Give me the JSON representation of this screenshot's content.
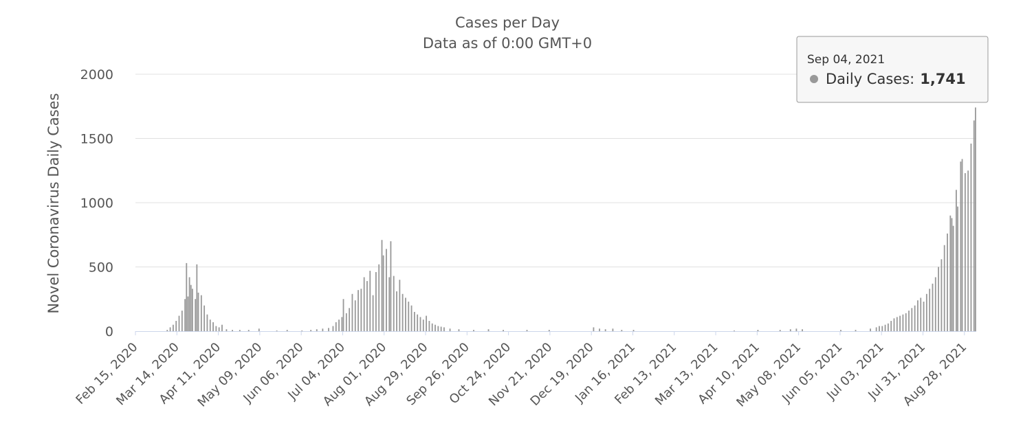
{
  "chart_data": {
    "type": "bar",
    "title": "Cases per Day",
    "subtitle": "Data as of 0:00 GMT+0",
    "xlabel": "",
    "ylabel": "Novel Coronavirus Daily Cases",
    "ylim": [
      0,
      2000
    ],
    "y_ticks": [
      0,
      500,
      1000,
      1500,
      2000
    ],
    "grid": true,
    "bar_color": "#999999",
    "x_start": "Feb 15, 2020",
    "x_end": "Sep 04, 2021",
    "x_ticks": [
      "Feb 15, 2020",
      "Mar 14, 2020",
      "Apr 11, 2020",
      "May 09, 2020",
      "Jun 06, 2020",
      "Jul 04, 2020",
      "Aug 01, 2020",
      "Aug 29, 2020",
      "Sep 26, 2020",
      "Oct 24, 2020",
      "Nov 21, 2020",
      "Dec 19, 2020",
      "Jan 16, 2021",
      "Feb 13, 2021",
      "Mar 13, 2021",
      "Apr 10, 2021",
      "May 08, 2021",
      "Jun 05, 2021",
      "Jul 03, 2021",
      "Jul 31, 2021",
      "Aug 28, 2021"
    ],
    "series": [
      {
        "name": "Daily Cases",
        "points": [
          [
            "Mar 07, 2020",
            10
          ],
          [
            "Mar 09, 2020",
            30
          ],
          [
            "Mar 11, 2020",
            50
          ],
          [
            "Mar 13, 2020",
            80
          ],
          [
            "Mar 15, 2020",
            120
          ],
          [
            "Mar 17, 2020",
            160
          ],
          [
            "Mar 19, 2020",
            250
          ],
          [
            "Mar 20, 2020",
            530
          ],
          [
            "Mar 21, 2020",
            270
          ],
          [
            "Mar 22, 2020",
            420
          ],
          [
            "Mar 23, 2020",
            360
          ],
          [
            "Mar 24, 2020",
            330
          ],
          [
            "Mar 26, 2020",
            250
          ],
          [
            "Mar 27, 2020",
            520
          ],
          [
            "Mar 28, 2020",
            300
          ],
          [
            "Mar 30, 2020",
            280
          ],
          [
            "Apr 01, 2020",
            200
          ],
          [
            "Apr 03, 2020",
            130
          ],
          [
            "Apr 05, 2020",
            90
          ],
          [
            "Apr 07, 2020",
            70
          ],
          [
            "Apr 09, 2020",
            40
          ],
          [
            "Apr 11, 2020",
            30
          ],
          [
            "Apr 13, 2020",
            50
          ],
          [
            "Apr 16, 2020",
            15
          ],
          [
            "Apr 20, 2020",
            10
          ],
          [
            "Apr 25, 2020",
            10
          ],
          [
            "May 01, 2020",
            10
          ],
          [
            "May 08, 2020",
            20
          ],
          [
            "May 20, 2020",
            5
          ],
          [
            "May 27, 2020",
            10
          ],
          [
            "Jun 06, 2020",
            5
          ],
          [
            "Jun 12, 2020",
            10
          ],
          [
            "Jun 16, 2020",
            15
          ],
          [
            "Jun 20, 2020",
            20
          ],
          [
            "Jun 24, 2020",
            25
          ],
          [
            "Jun 27, 2020",
            40
          ],
          [
            "Jun 29, 2020",
            70
          ],
          [
            "Jul 01, 2020",
            90
          ],
          [
            "Jul 03, 2020",
            110
          ],
          [
            "Jul 04, 2020",
            250
          ],
          [
            "Jul 06, 2020",
            140
          ],
          [
            "Jul 08, 2020",
            180
          ],
          [
            "Jul 10, 2020",
            290
          ],
          [
            "Jul 12, 2020",
            240
          ],
          [
            "Jul 14, 2020",
            320
          ],
          [
            "Jul 16, 2020",
            330
          ],
          [
            "Jul 18, 2020",
            420
          ],
          [
            "Jul 20, 2020",
            390
          ],
          [
            "Jul 22, 2020",
            470
          ],
          [
            "Jul 24, 2020",
            280
          ],
          [
            "Jul 26, 2020",
            460
          ],
          [
            "Jul 28, 2020",
            520
          ],
          [
            "Jul 30, 2020",
            710
          ],
          [
            "Jul 31, 2020",
            590
          ],
          [
            "Aug 02, 2020",
            640
          ],
          [
            "Aug 04, 2020",
            420
          ],
          [
            "Aug 05, 2020",
            700
          ],
          [
            "Aug 07, 2020",
            430
          ],
          [
            "Aug 09, 2020",
            310
          ],
          [
            "Aug 11, 2020",
            400
          ],
          [
            "Aug 13, 2020",
            290
          ],
          [
            "Aug 15, 2020",
            260
          ],
          [
            "Aug 17, 2020",
            230
          ],
          [
            "Aug 19, 2020",
            200
          ],
          [
            "Aug 21, 2020",
            150
          ],
          [
            "Aug 23, 2020",
            130
          ],
          [
            "Aug 25, 2020",
            110
          ],
          [
            "Aug 27, 2020",
            90
          ],
          [
            "Aug 29, 2020",
            120
          ],
          [
            "Aug 31, 2020",
            80
          ],
          [
            "Sep 02, 2020",
            60
          ],
          [
            "Sep 04, 2020",
            50
          ],
          [
            "Sep 06, 2020",
            40
          ],
          [
            "Sep 08, 2020",
            35
          ],
          [
            "Sep 10, 2020",
            30
          ],
          [
            "Sep 14, 2020",
            20
          ],
          [
            "Sep 20, 2020",
            15
          ],
          [
            "Sep 30, 2020",
            10
          ],
          [
            "Oct 10, 2020",
            15
          ],
          [
            "Oct 20, 2020",
            10
          ],
          [
            "Nov 05, 2020",
            10
          ],
          [
            "Nov 20, 2020",
            10
          ],
          [
            "Dec 20, 2020",
            30
          ],
          [
            "Dec 24, 2020",
            20
          ],
          [
            "Dec 28, 2020",
            15
          ],
          [
            "Jan 02, 2021",
            20
          ],
          [
            "Jan 08, 2021",
            10
          ],
          [
            "Jan 16, 2021",
            10
          ],
          [
            "Mar 25, 2021",
            5
          ],
          [
            "Apr 10, 2021",
            10
          ],
          [
            "Apr 25, 2021",
            10
          ],
          [
            "May 02, 2021",
            15
          ],
          [
            "May 06, 2021",
            20
          ],
          [
            "May 10, 2021",
            15
          ],
          [
            "Jun 05, 2021",
            10
          ],
          [
            "Jun 15, 2021",
            10
          ],
          [
            "Jun 25, 2021",
            20
          ],
          [
            "Jun 29, 2021",
            30
          ],
          [
            "Jul 01, 2021",
            40
          ],
          [
            "Jul 03, 2021",
            40
          ],
          [
            "Jul 05, 2021",
            50
          ],
          [
            "Jul 07, 2021",
            60
          ],
          [
            "Jul 09, 2021",
            80
          ],
          [
            "Jul 11, 2021",
            100
          ],
          [
            "Jul 13, 2021",
            110
          ],
          [
            "Jul 15, 2021",
            120
          ],
          [
            "Jul 17, 2021",
            130
          ],
          [
            "Jul 19, 2021",
            140
          ],
          [
            "Jul 21, 2021",
            160
          ],
          [
            "Jul 23, 2021",
            180
          ],
          [
            "Jul 25, 2021",
            200
          ],
          [
            "Jul 27, 2021",
            240
          ],
          [
            "Jul 29, 2021",
            260
          ],
          [
            "Jul 31, 2021",
            230
          ],
          [
            "Aug 02, 2021",
            290
          ],
          [
            "Aug 04, 2021",
            330
          ],
          [
            "Aug 06, 2021",
            370
          ],
          [
            "Aug 08, 2021",
            420
          ],
          [
            "Aug 10, 2021",
            500
          ],
          [
            "Aug 12, 2021",
            560
          ],
          [
            "Aug 14, 2021",
            670
          ],
          [
            "Aug 16, 2021",
            760
          ],
          [
            "Aug 18, 2021",
            900
          ],
          [
            "Aug 19, 2021",
            880
          ],
          [
            "Aug 20, 2021",
            820
          ],
          [
            "Aug 22, 2021",
            1100
          ],
          [
            "Aug 23, 2021",
            970
          ],
          [
            "Aug 25, 2021",
            1320
          ],
          [
            "Aug 26, 2021",
            1340
          ],
          [
            "Aug 28, 2021",
            1230
          ],
          [
            "Aug 30, 2021",
            1250
          ],
          [
            "Sep 01, 2021",
            1460
          ],
          [
            "Sep 03, 2021",
            1640
          ],
          [
            "Sep 04, 2021",
            1741
          ]
        ]
      }
    ]
  },
  "tooltip": {
    "date": "Sep 04, 2021",
    "label": "Daily Cases:",
    "value": "1,741",
    "dot_color": "#999999"
  }
}
